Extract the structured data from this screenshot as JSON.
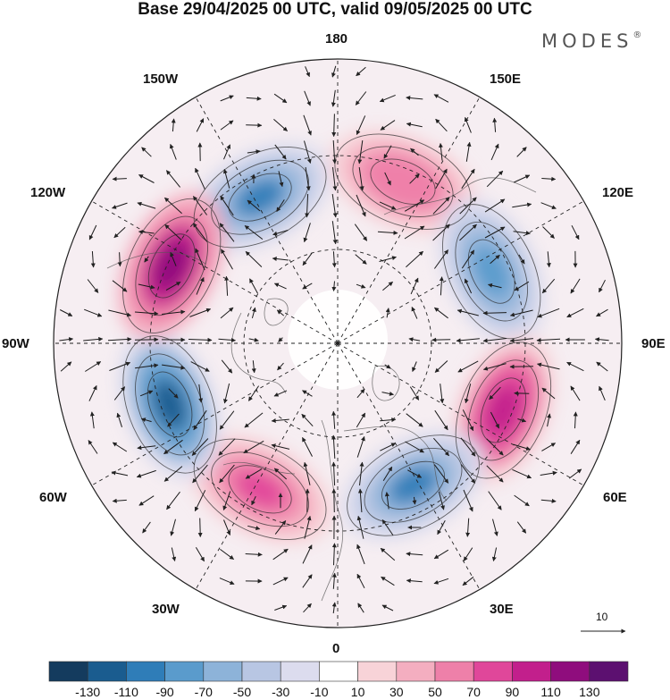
{
  "title": "Base 29/04/2025 00 UTC, valid 09/05/2025 00 UTC",
  "brand": "MODES",
  "brand_mark": "®",
  "longitude_labels": {
    "top": "180",
    "bottom": "0",
    "left": "90W",
    "right": "90E",
    "upper_left_1": "150W",
    "upper_left_2": "120W",
    "upper_right_1": "150E",
    "upper_right_2": "120E",
    "lower_left_1": "60W",
    "lower_left_2": "30W",
    "lower_right_1": "60E",
    "lower_right_2": "30E"
  },
  "vector_reference": "10",
  "colorbar": {
    "labels": [
      "-130",
      "-110",
      "-90",
      "-70",
      "-50",
      "-30",
      "-10",
      "10",
      "30",
      "50",
      "70",
      "90",
      "110",
      "130"
    ],
    "colors": [
      "#143b5e",
      "#1a5c8f",
      "#2f7db8",
      "#5a9bcc",
      "#8db3d9",
      "#b8c6e3",
      "#dcdcee",
      "#ffffff",
      "#f8d3d8",
      "#f4aec0",
      "#ee80a9",
      "#e0479a",
      "#c21f8c",
      "#8f0d7d",
      "#5c1070"
    ]
  },
  "anomaly_centers": [
    {
      "sign": "negative",
      "magnitude": 90
    },
    {
      "sign": "positive",
      "magnitude": 70
    },
    {
      "sign": "negative",
      "magnitude": 70
    },
    {
      "sign": "positive",
      "magnitude": 110
    },
    {
      "sign": "negative",
      "magnitude": 90
    },
    {
      "sign": "positive",
      "magnitude": 90
    },
    {
      "sign": "negative",
      "magnitude": 110
    },
    {
      "sign": "positive",
      "magnitude": 130
    }
  ]
}
